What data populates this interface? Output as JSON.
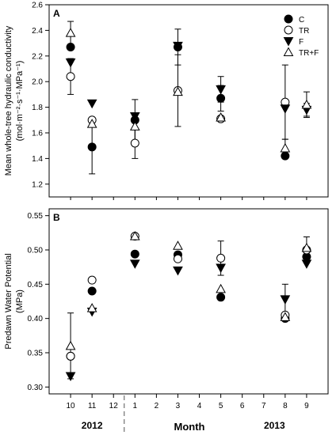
{
  "chart_data": [
    {
      "type": "scatter",
      "panel_label": "A",
      "ylabel": "Mean whole-tree hydraulic conductivity (mol·m⁻²·s⁻¹·MPa⁻¹)",
      "ylabel_line1": "Mean whole-tree hydraulic conductivity",
      "ylabel_line2": "(mol·m⁻²·s⁻¹·MPa⁻¹)",
      "ylim": [
        1.1,
        2.6
      ],
      "yticks": [
        1.2,
        1.4,
        1.6,
        1.8,
        2.0,
        2.2,
        2.4,
        2.6
      ],
      "ytick_labels": [
        "1.2",
        "1.4",
        "1.6",
        "1.8",
        "2.0",
        "2.2",
        "2.4",
        "2.6"
      ],
      "legend_position": "top-right",
      "series": [
        {
          "name": "C",
          "marker": "circle-filled",
          "x": [
            10,
            11,
            13,
            15,
            17,
            20
          ],
          "y": [
            2.27,
            1.49,
            1.7,
            2.27,
            1.87,
            1.42
          ],
          "err": [
            0.0,
            0.21,
            0.16,
            0.14,
            0.1,
            0.0
          ]
        },
        {
          "name": "TR",
          "marker": "circle-open",
          "x": [
            10,
            11,
            13,
            15,
            17,
            20
          ],
          "y": [
            2.04,
            1.7,
            1.52,
            1.93,
            1.71,
            1.84
          ],
          "err": [
            0.14,
            0.0,
            0.12,
            0.28,
            0.0,
            0.29
          ]
        },
        {
          "name": "F",
          "marker": "triangle-down-filled",
          "x": [
            10,
            11,
            13,
            15,
            17,
            20,
            21
          ],
          "y": [
            2.15,
            1.83,
            1.73,
            2.28,
            1.94,
            1.79,
            1.78
          ],
          "err": [
            0.0,
            0.0,
            0.0,
            0.0,
            0.1,
            0.0,
            0.05
          ]
        },
        {
          "name": "TR+F",
          "marker": "triangle-up-open",
          "x": [
            10,
            11,
            13,
            15,
            17,
            20,
            21
          ],
          "y": [
            2.38,
            1.67,
            1.65,
            1.92,
            1.72,
            1.48,
            1.82
          ],
          "err": [
            0.09,
            0.0,
            0.0,
            0.0,
            0.0,
            0.07,
            0.1
          ]
        }
      ]
    },
    {
      "type": "scatter",
      "panel_label": "B",
      "ylabel": "Predawn Water Potential (MPa)",
      "ylabel_line1": "Predawn Water Potential",
      "ylabel_line2": "(MPa)",
      "ylim": [
        0.29,
        0.56
      ],
      "yticks": [
        0.3,
        0.35,
        0.4,
        0.45,
        0.5,
        0.55
      ],
      "ytick_labels": [
        "0.30",
        "0.35",
        "0.40",
        "0.45",
        "0.50",
        "0.55"
      ],
      "series": [
        {
          "name": "C",
          "marker": "circle-filled",
          "x": [
            10,
            11,
            13,
            15,
            17,
            20,
            21
          ],
          "y": [
            0.345,
            0.44,
            0.494,
            0.493,
            0.431,
            0.4,
            0.49
          ],
          "err": [
            0.0,
            0.0,
            0.0,
            0.0,
            0.0,
            0.0,
            0.0
          ]
        },
        {
          "name": "TR",
          "marker": "circle-open",
          "x": [
            10,
            11,
            13,
            15,
            17,
            20,
            21
          ],
          "y": [
            0.345,
            0.456,
            0.52,
            0.487,
            0.488,
            0.405,
            0.5
          ],
          "err": [
            0.0,
            0.0,
            0.0,
            0.0,
            0.025,
            0.0,
            0.019
          ]
        },
        {
          "name": "F",
          "marker": "triangle-down-filled",
          "x": [
            10,
            11,
            13,
            15,
            17,
            20,
            21
          ],
          "y": [
            0.316,
            0.41,
            0.48,
            0.47,
            0.474,
            0.428,
            0.48
          ],
          "err": [
            0.0,
            0.0,
            0.0,
            0.0,
            0.0,
            0.022,
            0.0
          ]
        },
        {
          "name": "TR+F",
          "marker": "triangle-up-open",
          "x": [
            10,
            11,
            13,
            15,
            17,
            20,
            21
          ],
          "y": [
            0.36,
            0.415,
            0.52,
            0.506,
            0.443,
            0.402,
            0.503
          ],
          "err": [
            0.048,
            0.0,
            0.0,
            0.0,
            0.0,
            0.0,
            0.0
          ]
        }
      ]
    }
  ],
  "x_axis": {
    "xlim": [
      9,
      22
    ],
    "ticks": [
      10,
      11,
      12,
      13,
      14,
      15,
      16,
      17,
      18,
      19,
      20,
      21
    ],
    "tick_labels": [
      "10",
      "11",
      "12",
      "1",
      "2",
      "3",
      "4",
      "5",
      "6",
      "7",
      "8",
      "9"
    ],
    "xlabel": "Month",
    "year_labels": [
      {
        "text": "2012",
        "x": 11
      },
      {
        "text": "2013",
        "x": 19.5
      }
    ],
    "year_break": 12.5
  },
  "legend": {
    "entries": [
      {
        "name": "C",
        "marker": "circle-filled"
      },
      {
        "name": "TR",
        "marker": "circle-open"
      },
      {
        "name": "F",
        "marker": "triangle-down-filled"
      },
      {
        "name": "TR+F",
        "marker": "triangle-up-open"
      }
    ]
  }
}
